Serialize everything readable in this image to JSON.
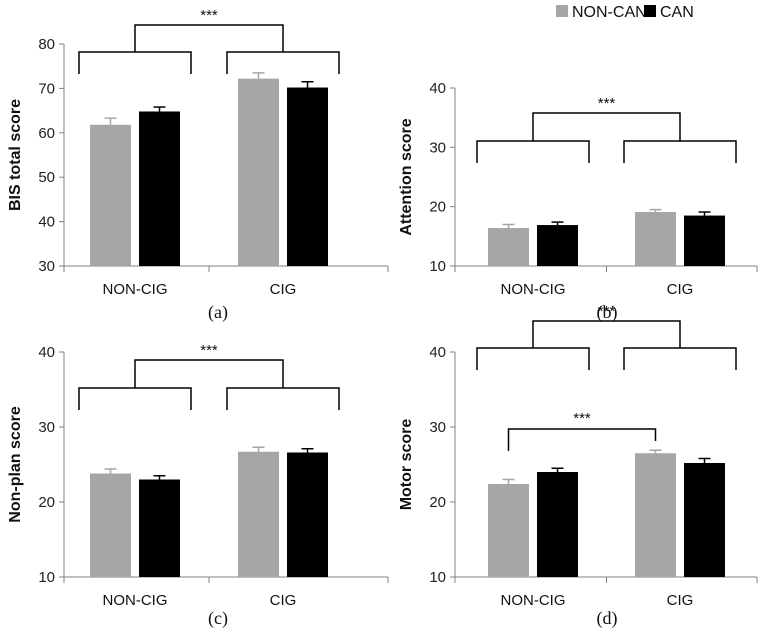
{
  "legend": {
    "entries": [
      {
        "label": "NON-CAN",
        "color": "#a6a6a6"
      },
      {
        "label": "CAN",
        "color": "#000000"
      }
    ]
  },
  "colors": {
    "non_can": "#a6a6a6",
    "can": "#000000",
    "axis": "#808080"
  },
  "chart_data": [
    {
      "type": "bar",
      "panel": "(a)",
      "ylabel": "BIS total score",
      "ylim": [
        30,
        80
      ],
      "yticks": [
        30,
        40,
        50,
        60,
        70,
        80
      ],
      "categories": [
        "NON-CIG",
        "CIG"
      ],
      "series": [
        {
          "name": "NON-CAN",
          "values": [
            61.8,
            72.2
          ],
          "errors": [
            1.5,
            1.3
          ]
        },
        {
          "name": "CAN",
          "values": [
            64.8,
            70.2
          ],
          "errors": [
            1.0,
            1.3
          ]
        }
      ],
      "significance": [
        {
          "label": "***",
          "between": "NON-CIG vs CIG"
        }
      ]
    },
    {
      "type": "bar",
      "panel": "(b)",
      "ylabel": "Attention score",
      "ylim": [
        10,
        40
      ],
      "yticks": [
        10,
        20,
        30,
        40
      ],
      "categories": [
        "NON-CIG",
        "CIG"
      ],
      "series": [
        {
          "name": "NON-CAN",
          "values": [
            16.4,
            19.1
          ],
          "errors": [
            0.6,
            0.4
          ]
        },
        {
          "name": "CAN",
          "values": [
            16.9,
            18.5
          ],
          "errors": [
            0.5,
            0.6
          ]
        }
      ],
      "significance": [
        {
          "label": "***",
          "between": "NON-CIG vs CIG"
        }
      ]
    },
    {
      "type": "bar",
      "panel": "(c)",
      "ylabel": "Non-plan score",
      "ylim": [
        10,
        40
      ],
      "yticks": [
        10,
        20,
        30,
        40
      ],
      "categories": [
        "NON-CIG",
        "CIG"
      ],
      "series": [
        {
          "name": "NON-CAN",
          "values": [
            23.8,
            26.7
          ],
          "errors": [
            0.6,
            0.6
          ]
        },
        {
          "name": "CAN",
          "values": [
            23.0,
            26.6
          ],
          "errors": [
            0.5,
            0.5
          ]
        }
      ],
      "significance": [
        {
          "label": "***",
          "between": "NON-CIG vs CIG"
        }
      ]
    },
    {
      "type": "bar",
      "panel": "(d)",
      "ylabel": "Motor score",
      "ylim": [
        10,
        40
      ],
      "yticks": [
        10,
        20,
        30,
        40
      ],
      "categories": [
        "NON-CIG",
        "CIG"
      ],
      "series": [
        {
          "name": "NON-CAN",
          "values": [
            22.4,
            26.5
          ],
          "errors": [
            0.6,
            0.4
          ]
        },
        {
          "name": "CAN",
          "values": [
            24.0,
            25.2
          ],
          "errors": [
            0.5,
            0.6
          ]
        }
      ],
      "significance": [
        {
          "label": "***",
          "between": "NON-CIG vs CIG"
        },
        {
          "label": "***",
          "between": "NON-CIG NON-CAN vs CIG NON-CAN"
        }
      ]
    }
  ]
}
